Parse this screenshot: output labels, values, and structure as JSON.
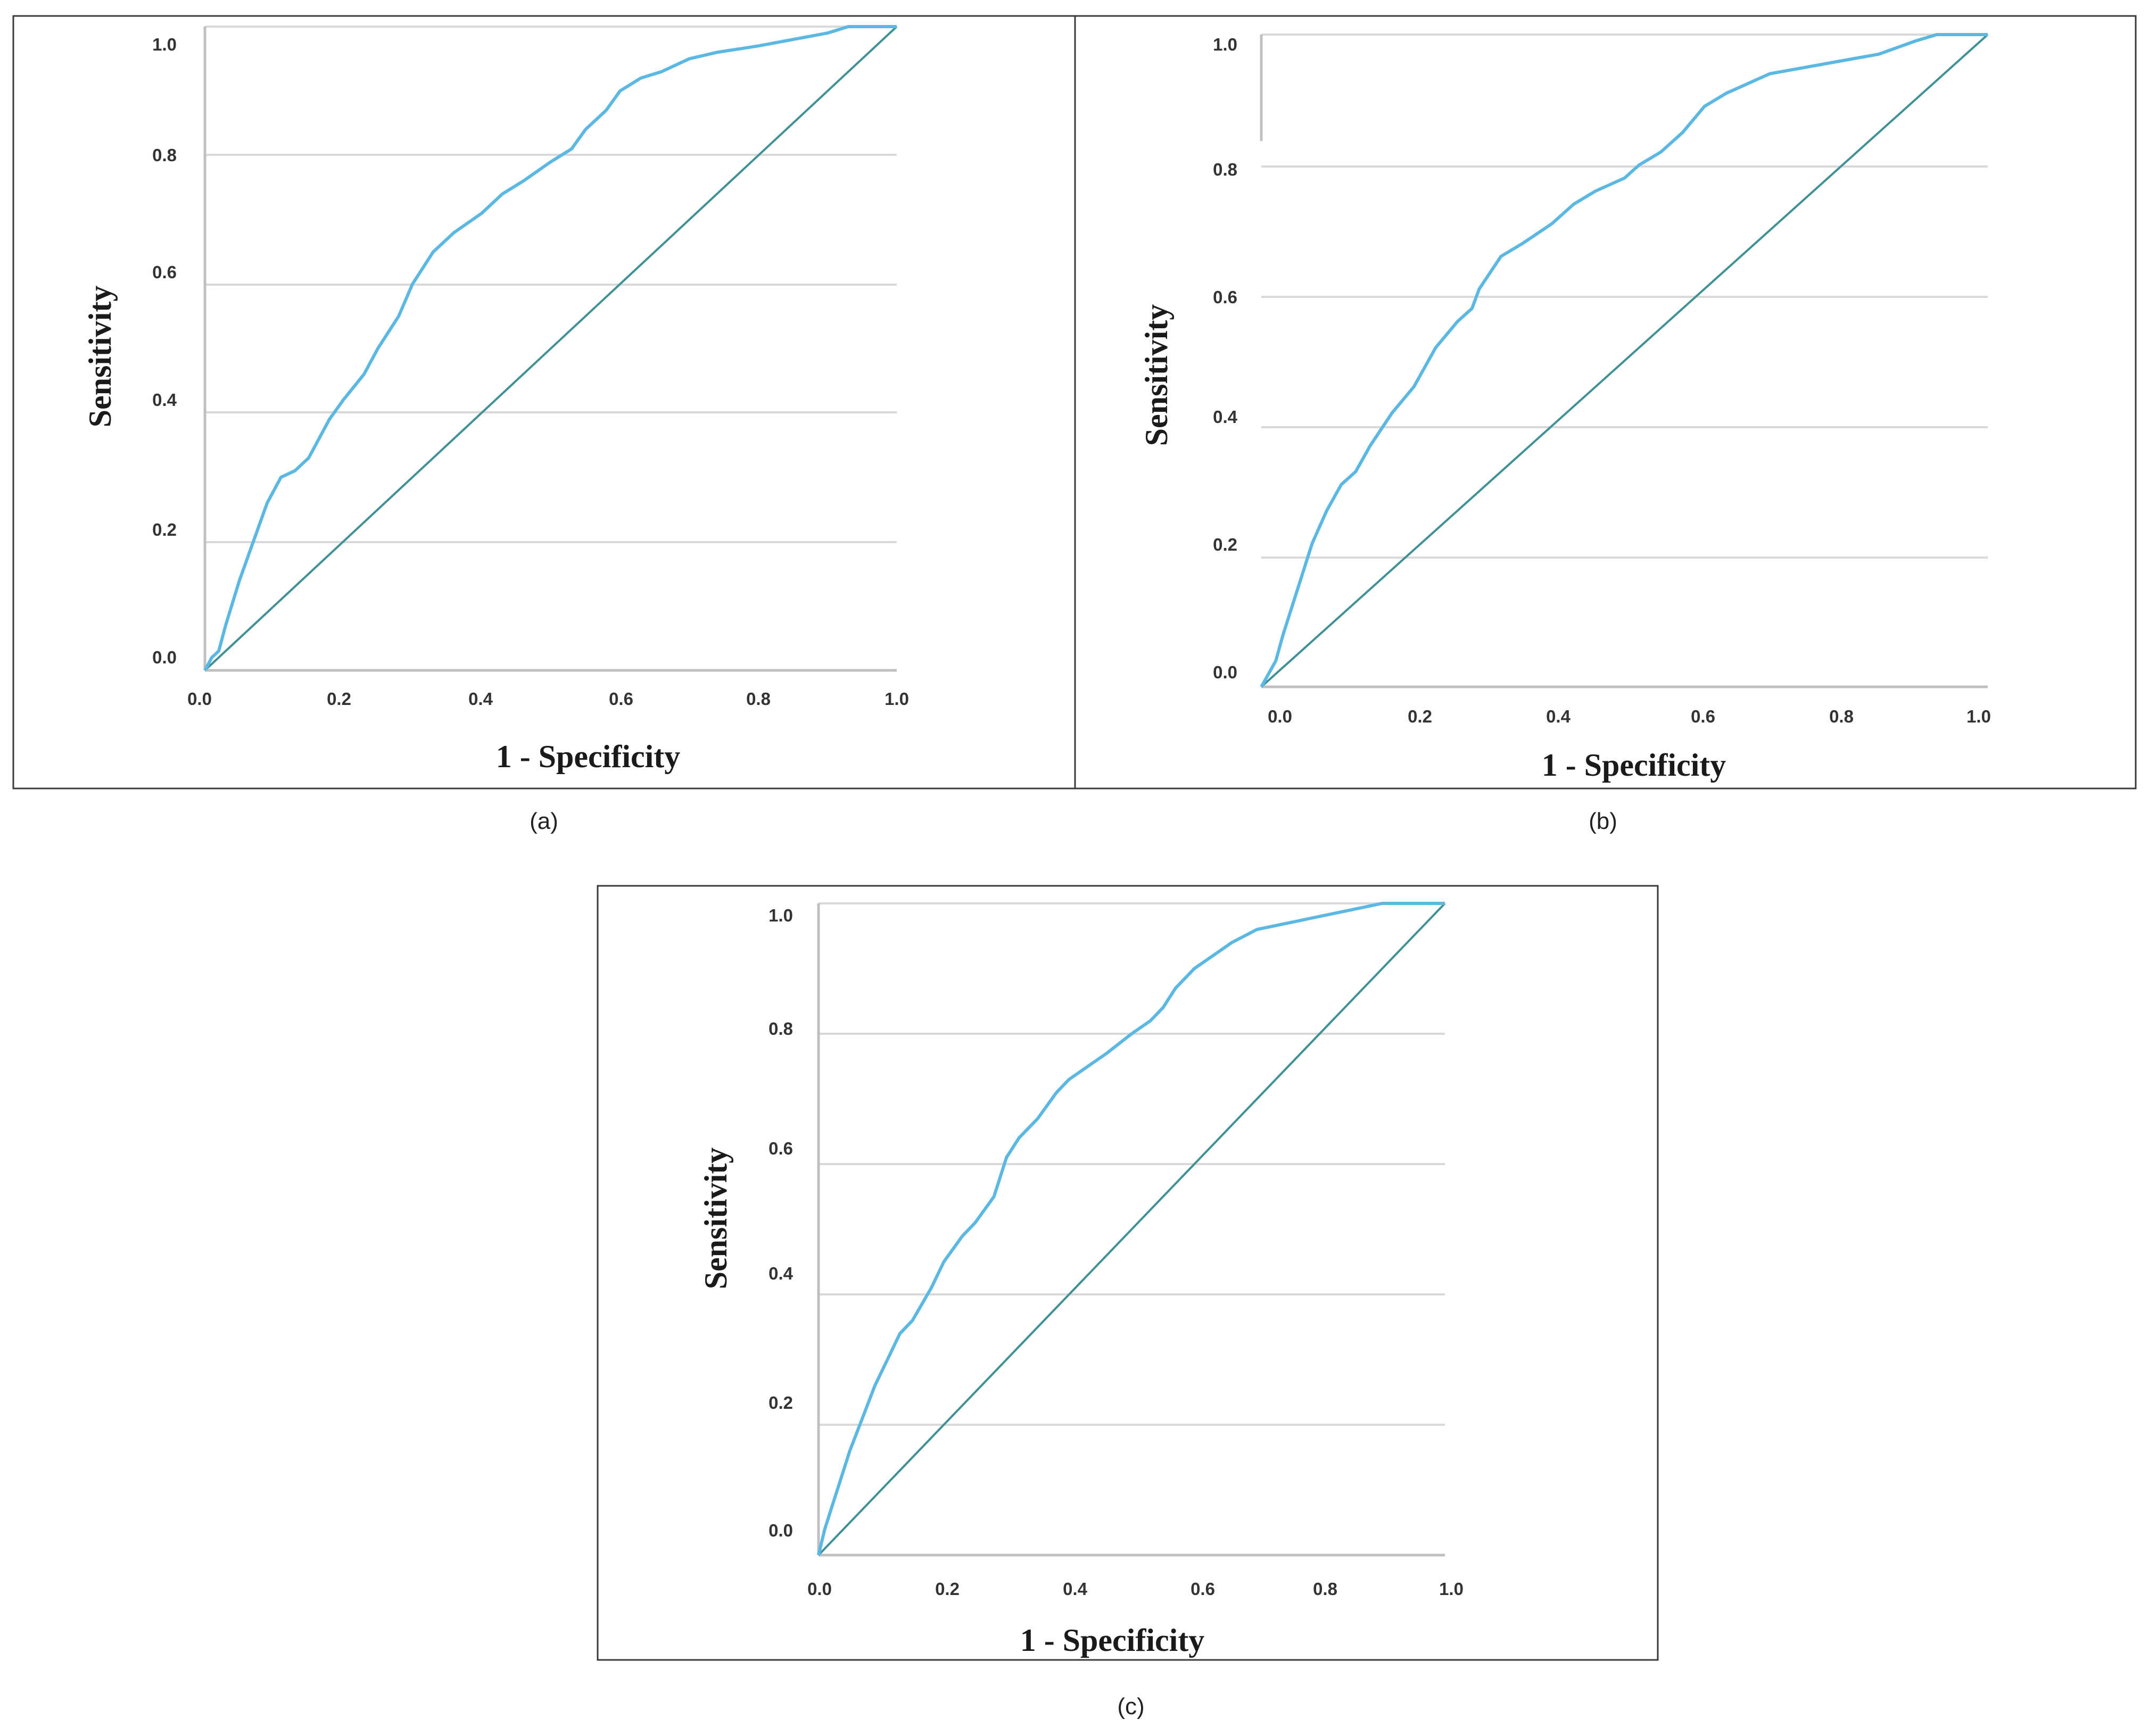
{
  "figure": {
    "captions": [
      "(a)",
      "(b)",
      "(c)"
    ]
  },
  "colors": {
    "roc_curve": "#5ab8e2",
    "reference_line": "#3f9196",
    "grid": "#d9d9d9",
    "frame": "#3a3a3a"
  },
  "chart_data": [
    {
      "id": "a",
      "type": "line",
      "title": "",
      "caption": "(a)",
      "xlabel": "1 - Specificity",
      "ylabel": "Sensitivity",
      "xlim": [
        0,
        1
      ],
      "ylim": [
        0,
        1
      ],
      "xticks": [
        "0.0",
        "0.2",
        "0.4",
        "0.6",
        "0.8",
        "1.0"
      ],
      "yticks": [
        "0.0",
        "0.2",
        "0.4",
        "0.6",
        "0.8",
        "1.0"
      ],
      "grid": "horizontal",
      "series": [
        {
          "name": "ROC curve",
          "x": [
            0,
            0.01,
            0.02,
            0.03,
            0.05,
            0.07,
            0.09,
            0.11,
            0.13,
            0.15,
            0.18,
            0.2,
            0.23,
            0.25,
            0.28,
            0.3,
            0.33,
            0.36,
            0.4,
            0.43,
            0.46,
            0.5,
            0.53,
            0.55,
            0.58,
            0.6,
            0.63,
            0.66,
            0.7,
            0.74,
            0.8,
            0.85,
            0.9,
            0.93,
            0.96,
            1.0
          ],
          "y": [
            0,
            0.02,
            0.03,
            0.07,
            0.14,
            0.2,
            0.26,
            0.3,
            0.31,
            0.33,
            0.39,
            0.42,
            0.46,
            0.5,
            0.55,
            0.6,
            0.65,
            0.68,
            0.71,
            0.74,
            0.76,
            0.79,
            0.81,
            0.84,
            0.87,
            0.9,
            0.92,
            0.93,
            0.95,
            0.96,
            0.97,
            0.98,
            0.99,
            1.0,
            1.0,
            1.0
          ]
        },
        {
          "name": "Reference line",
          "x": [
            0,
            1
          ],
          "y": [
            0,
            1
          ]
        }
      ]
    },
    {
      "id": "b",
      "type": "line",
      "title": "",
      "caption": "(b)",
      "xlabel": "1 - Specificity",
      "ylabel": "Sensitivity",
      "xlim": [
        0,
        1
      ],
      "ylim": [
        0,
        1
      ],
      "xticks": [
        "0.0",
        "0.2",
        "0.4",
        "0.6",
        "0.8",
        "1.0"
      ],
      "yticks": [
        "0.0",
        "0.2",
        "0.4",
        "0.6",
        "0.8",
        "1.0"
      ],
      "grid": "horizontal",
      "series": [
        {
          "name": "ROC curve",
          "x": [
            0,
            0.01,
            0.02,
            0.03,
            0.05,
            0.07,
            0.09,
            0.11,
            0.13,
            0.15,
            0.18,
            0.21,
            0.24,
            0.27,
            0.29,
            0.3,
            0.33,
            0.36,
            0.4,
            0.43,
            0.46,
            0.5,
            0.52,
            0.55,
            0.58,
            0.61,
            0.64,
            0.66,
            0.7,
            0.75,
            0.8,
            0.85,
            0.9,
            0.93,
            0.96,
            1.0
          ],
          "y": [
            0,
            0.02,
            0.04,
            0.08,
            0.15,
            0.22,
            0.27,
            0.31,
            0.33,
            0.37,
            0.42,
            0.46,
            0.52,
            0.56,
            0.58,
            0.61,
            0.66,
            0.68,
            0.71,
            0.74,
            0.76,
            0.78,
            0.8,
            0.82,
            0.85,
            0.89,
            0.91,
            0.92,
            0.94,
            0.95,
            0.96,
            0.97,
            0.99,
            1.0,
            1.0,
            1.0
          ]
        },
        {
          "name": "Reference line",
          "x": [
            0,
            1
          ],
          "y": [
            0,
            1
          ]
        }
      ]
    },
    {
      "id": "c",
      "type": "line",
      "title": "",
      "caption": "(c)",
      "xlabel": "1 - Specificity",
      "ylabel": "Sensitivity",
      "xlim": [
        0,
        1
      ],
      "ylim": [
        0,
        1
      ],
      "xticks": [
        "0.0",
        "0.2",
        "0.4",
        "0.6",
        "0.8",
        "1.0"
      ],
      "yticks": [
        "0.0",
        "0.2",
        "0.4",
        "0.6",
        "0.8",
        "1.0"
      ],
      "grid": "horizontal",
      "series": [
        {
          "name": "ROC curve",
          "x": [
            0,
            0.01,
            0.02,
            0.03,
            0.05,
            0.07,
            0.09,
            0.11,
            0.13,
            0.15,
            0.18,
            0.2,
            0.23,
            0.25,
            0.28,
            0.3,
            0.32,
            0.35,
            0.38,
            0.4,
            0.43,
            0.46,
            0.5,
            0.53,
            0.55,
            0.57,
            0.6,
            0.63,
            0.66,
            0.7,
            0.75,
            0.8,
            0.85,
            0.9,
            0.94,
            1.0
          ],
          "y": [
            0,
            0.04,
            0.07,
            0.1,
            0.16,
            0.21,
            0.26,
            0.3,
            0.34,
            0.36,
            0.41,
            0.45,
            0.49,
            0.51,
            0.55,
            0.61,
            0.64,
            0.67,
            0.71,
            0.73,
            0.75,
            0.77,
            0.8,
            0.82,
            0.84,
            0.87,
            0.9,
            0.92,
            0.94,
            0.96,
            0.97,
            0.98,
            0.99,
            1.0,
            1.0,
            1.0
          ]
        },
        {
          "name": "Reference line",
          "x": [
            0,
            1
          ],
          "y": [
            0,
            1
          ]
        }
      ]
    }
  ]
}
